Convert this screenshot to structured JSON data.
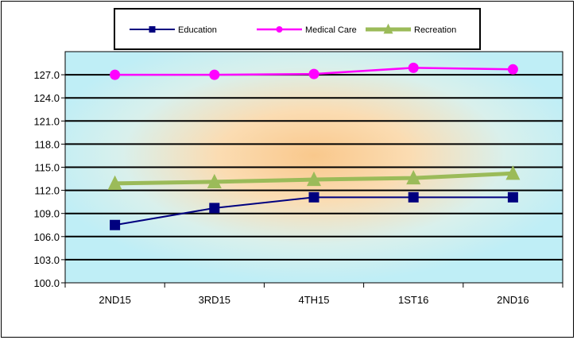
{
  "chart_data": {
    "type": "line",
    "categories": [
      "2ND15",
      "3RD15",
      "4TH15",
      "1ST16",
      "2ND16"
    ],
    "ylim": [
      100.0,
      130.0
    ],
    "yticks": [
      "100.0",
      "103.0",
      "106.0",
      "109.0",
      "112.0",
      "115.0",
      "118.0",
      "121.0",
      "124.0",
      "127.0"
    ],
    "grid": true,
    "legend_position": "top-center",
    "series": [
      {
        "name": "Education",
        "values": [
          107.5,
          109.7,
          111.1,
          111.1,
          111.1
        ],
        "color": "#00007f",
        "marker": "square"
      },
      {
        "name": "Medical Care",
        "values": [
          127.0,
          127.0,
          127.1,
          127.9,
          127.7
        ],
        "color": "#ff00ff",
        "marker": "circle"
      },
      {
        "name": "Recreation",
        "values": [
          112.9,
          113.1,
          113.4,
          113.6,
          114.2
        ],
        "color": "#9bbb59",
        "marker": "triangle"
      }
    ]
  }
}
